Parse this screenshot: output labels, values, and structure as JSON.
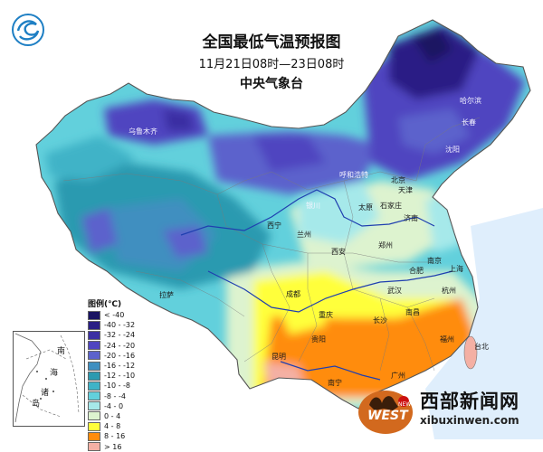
{
  "titles": {
    "main": "全国最低气温预报图",
    "period": "11月21日08时—23日08时",
    "source": "中央气象台"
  },
  "legend": {
    "title": "图例(℃)",
    "entries": [
      {
        "label": "< -40",
        "color": "#1a1462"
      },
      {
        "label": "-40 - -32",
        "color": "#2a1f85"
      },
      {
        "label": "-32 - -24",
        "color": "#3b2fa3"
      },
      {
        "label": "-24 - -20",
        "color": "#4f45c0"
      },
      {
        "label": "-20 - -16",
        "color": "#5c62cc"
      },
      {
        "label": "-16 - -12",
        "color": "#3f8fc0"
      },
      {
        "label": "-12 - -10",
        "color": "#2c9ab0"
      },
      {
        "label": "-10 - -8",
        "color": "#3fb3c7"
      },
      {
        "label": "-8 - -4",
        "color": "#62d0dc"
      },
      {
        "label": "-4 - 0",
        "color": "#a6e9ea"
      },
      {
        "label": "0 - 4",
        "color": "#ddf3cf"
      },
      {
        "label": "4 - 8",
        "color": "#ffff3a"
      },
      {
        "label": "8 - 16",
        "color": "#ff8c0c"
      },
      {
        "label": "> 16",
        "color": "#f4b0a4"
      }
    ]
  },
  "cities": {
    "urumqi": "乌鲁木齐",
    "harbin": "哈尔滨",
    "changchun": "长春",
    "shenyang": "沈阳",
    "hohhot": "呼和浩特",
    "beijing": "北京",
    "tianjin": "天津",
    "yinchuan": "银川",
    "shijiazhuang": "石家庄",
    "taiyuan": "太原",
    "jinan": "济南",
    "xining": "西宁",
    "lanzhou": "兰州",
    "zhengzhou": "郑州",
    "xian": "西安",
    "hefei": "合肥",
    "nanjing": "南京",
    "shanghai": "上海",
    "lhasa": "拉萨",
    "chengdu": "成都",
    "wuhan": "武汉",
    "hangzhou": "杭州",
    "chongqing": "重庆",
    "changsha": "长沙",
    "nanchang": "南昌",
    "guiyang": "贵阳",
    "fuzhou": "福州",
    "kunming": "昆明",
    "taipei": "台北",
    "nanning": "南宁",
    "guangzhou": "广州"
  },
  "inset": {
    "label_nan": "南",
    "label_hai": "海",
    "label_zhu": "诸",
    "label_dao": "岛"
  },
  "watermark": {
    "name": "西部新闻网",
    "url": "xibuxinwen.com",
    "badge_word": "WEST",
    "badge_small": "NEWS"
  },
  "icons": {
    "logo": "cma-swirl-logo"
  }
}
